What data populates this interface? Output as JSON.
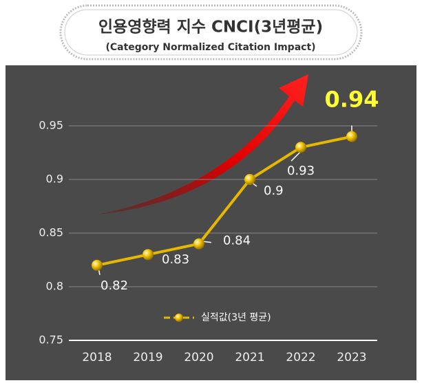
{
  "chart_data": {
    "type": "line",
    "title": "인용영향력 지수 CNCI(3년평균)",
    "subtitle": "(Category Normalized Citation Impact)",
    "categories": [
      "2018",
      "2019",
      "2020",
      "2021",
      "2022",
      "2023"
    ],
    "series": [
      {
        "name": "실적값(3년 평균)",
        "color": "#e6b800",
        "values": [
          0.82,
          0.83,
          0.84,
          0.9,
          0.93,
          0.94
        ]
      }
    ],
    "ylim": [
      0.75,
      1.0
    ],
    "yticks": [
      0.75,
      0.8,
      0.85,
      0.9,
      0.95
    ],
    "grid": true
  }
}
